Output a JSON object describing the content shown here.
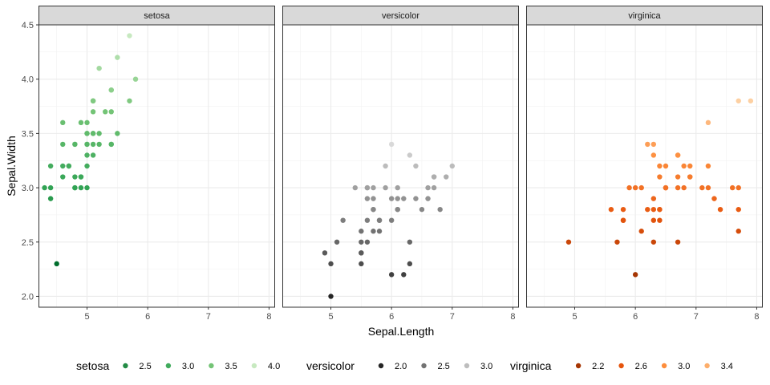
{
  "chart_data": {
    "type": "scatter",
    "xlabel": "Sepal.Length",
    "ylabel": "Sepal.Width",
    "xlim": [
      4.2,
      8.1
    ],
    "ylim": [
      1.9,
      4.5
    ],
    "x_ticks": [
      "5",
      "6",
      "7",
      "8"
    ],
    "y_ticks": [
      "2.0",
      "2.5",
      "3.0",
      "3.5",
      "4.0",
      "4.5"
    ],
    "grid": true,
    "legend_position": "bottom",
    "panels": [
      {
        "name": "setosa",
        "legend_title": "setosa",
        "color_range": [
          2.3,
          4.4
        ],
        "colors": [
          "#006d2c",
          "#31a354",
          "#74c476",
          "#c7e9c0"
        ],
        "legend": [
          {
            "label": "2.5",
            "value": 2.5,
            "color": "#238b45"
          },
          {
            "label": "3.0",
            "value": 3.0,
            "color": "#41ab5d"
          },
          {
            "label": "3.5",
            "value": 3.5,
            "color": "#74c476"
          },
          {
            "label": "4.0",
            "value": 4.0,
            "color": "#c7e9c0"
          }
        ],
        "points": [
          [
            5.1,
            3.5
          ],
          [
            4.9,
            3.0
          ],
          [
            4.7,
            3.2
          ],
          [
            4.6,
            3.1
          ],
          [
            5.0,
            3.6
          ],
          [
            5.4,
            3.9
          ],
          [
            4.6,
            3.4
          ],
          [
            5.0,
            3.4
          ],
          [
            4.4,
            2.9
          ],
          [
            4.9,
            3.1
          ],
          [
            5.4,
            3.7
          ],
          [
            4.8,
            3.4
          ],
          [
            4.8,
            3.0
          ],
          [
            4.3,
            3.0
          ],
          [
            5.8,
            4.0
          ],
          [
            5.7,
            4.4
          ],
          [
            5.4,
            3.9
          ],
          [
            5.1,
            3.5
          ],
          [
            5.7,
            3.8
          ],
          [
            5.1,
            3.8
          ],
          [
            5.4,
            3.4
          ],
          [
            5.1,
            3.7
          ],
          [
            4.6,
            3.6
          ],
          [
            5.1,
            3.3
          ],
          [
            4.8,
            3.4
          ],
          [
            5.0,
            3.0
          ],
          [
            5.0,
            3.4
          ],
          [
            5.2,
            3.5
          ],
          [
            5.2,
            3.4
          ],
          [
            4.7,
            3.2
          ],
          [
            4.8,
            3.1
          ],
          [
            5.4,
            3.4
          ],
          [
            5.2,
            4.1
          ],
          [
            5.5,
            4.2
          ],
          [
            4.9,
            3.1
          ],
          [
            5.0,
            3.2
          ],
          [
            5.5,
            3.5
          ],
          [
            4.9,
            3.6
          ],
          [
            4.4,
            3.0
          ],
          [
            5.1,
            3.4
          ],
          [
            5.0,
            3.5
          ],
          [
            4.5,
            2.3
          ],
          [
            4.4,
            3.2
          ],
          [
            5.0,
            3.5
          ],
          [
            5.1,
            3.8
          ],
          [
            4.8,
            3.0
          ],
          [
            5.1,
            3.8
          ],
          [
            4.6,
            3.2
          ],
          [
            5.3,
            3.7
          ],
          [
            5.0,
            3.3
          ]
        ]
      },
      {
        "name": "versicolor",
        "legend_title": "versicolor",
        "color_range": [
          2.0,
          3.4
        ],
        "colors": [
          "#252525",
          "#636363",
          "#969696",
          "#d9d9d9"
        ],
        "legend": [
          {
            "label": "2.0",
            "value": 2.0,
            "color": "#252525"
          },
          {
            "label": "2.5",
            "value": 2.5,
            "color": "#737373"
          },
          {
            "label": "3.0",
            "value": 3.0,
            "color": "#bdbdbd"
          }
        ],
        "points": [
          [
            7.0,
            3.2
          ],
          [
            6.4,
            3.2
          ],
          [
            6.9,
            3.1
          ],
          [
            5.5,
            2.3
          ],
          [
            6.5,
            2.8
          ],
          [
            5.7,
            2.8
          ],
          [
            6.3,
            3.3
          ],
          [
            4.9,
            2.4
          ],
          [
            6.6,
            2.9
          ],
          [
            5.2,
            2.7
          ],
          [
            5.0,
            2.0
          ],
          [
            5.9,
            3.0
          ],
          [
            6.0,
            2.2
          ],
          [
            6.1,
            2.9
          ],
          [
            5.6,
            2.9
          ],
          [
            6.7,
            3.1
          ],
          [
            5.6,
            3.0
          ],
          [
            5.8,
            2.7
          ],
          [
            6.2,
            2.2
          ],
          [
            5.6,
            2.5
          ],
          [
            5.9,
            3.2
          ],
          [
            6.1,
            2.8
          ],
          [
            6.3,
            2.5
          ],
          [
            6.1,
            2.8
          ],
          [
            6.4,
            2.9
          ],
          [
            6.6,
            3.0
          ],
          [
            6.8,
            2.8
          ],
          [
            6.7,
            3.0
          ],
          [
            6.0,
            2.9
          ],
          [
            5.7,
            2.6
          ],
          [
            5.5,
            2.4
          ],
          [
            5.5,
            2.4
          ],
          [
            5.8,
            2.7
          ],
          [
            6.0,
            2.7
          ],
          [
            5.4,
            3.0
          ],
          [
            6.0,
            3.4
          ],
          [
            6.7,
            3.1
          ],
          [
            6.3,
            2.3
          ],
          [
            5.6,
            3.0
          ],
          [
            5.5,
            2.5
          ],
          [
            5.5,
            2.6
          ],
          [
            6.1,
            3.0
          ],
          [
            5.8,
            2.6
          ],
          [
            5.0,
            2.3
          ],
          [
            5.6,
            2.7
          ],
          [
            5.7,
            3.0
          ],
          [
            5.7,
            2.9
          ],
          [
            6.2,
            2.9
          ],
          [
            5.1,
            2.5
          ],
          [
            5.7,
            2.8
          ]
        ]
      },
      {
        "name": "virginica",
        "legend_title": "virginica",
        "color_range": [
          2.2,
          3.8
        ],
        "colors": [
          "#a63603",
          "#e6550d",
          "#fd8d3c",
          "#fdd0a2"
        ],
        "legend": [
          {
            "label": "2.2",
            "value": 2.2,
            "color": "#a63603"
          },
          {
            "label": "2.6",
            "value": 2.6,
            "color": "#e6550d"
          },
          {
            "label": "3.0",
            "value": 3.0,
            "color": "#fd8d3c"
          },
          {
            "label": "3.4",
            "value": 3.4,
            "color": "#fdae6b"
          }
        ],
        "points": [
          [
            6.3,
            3.3
          ],
          [
            5.8,
            2.7
          ],
          [
            7.1,
            3.0
          ],
          [
            6.3,
            2.9
          ],
          [
            6.5,
            3.0
          ],
          [
            7.6,
            3.0
          ],
          [
            4.9,
            2.5
          ],
          [
            7.3,
            2.9
          ],
          [
            6.7,
            2.5
          ],
          [
            7.2,
            3.6
          ],
          [
            6.5,
            3.2
          ],
          [
            6.4,
            2.7
          ],
          [
            6.8,
            3.0
          ],
          [
            5.7,
            2.5
          ],
          [
            5.8,
            2.8
          ],
          [
            6.4,
            3.2
          ],
          [
            6.5,
            3.0
          ],
          [
            7.7,
            3.8
          ],
          [
            7.7,
            2.6
          ],
          [
            6.0,
            2.2
          ],
          [
            6.9,
            3.2
          ],
          [
            5.6,
            2.8
          ],
          [
            7.7,
            2.8
          ],
          [
            6.3,
            2.7
          ],
          [
            6.7,
            3.3
          ],
          [
            7.2,
            3.2
          ],
          [
            6.2,
            2.8
          ],
          [
            6.1,
            3.0
          ],
          [
            6.4,
            2.8
          ],
          [
            7.2,
            3.0
          ],
          [
            7.4,
            2.8
          ],
          [
            7.9,
            3.8
          ],
          [
            6.4,
            2.8
          ],
          [
            6.3,
            2.8
          ],
          [
            6.1,
            2.6
          ],
          [
            7.7,
            3.0
          ],
          [
            6.3,
            3.4
          ],
          [
            6.4,
            3.1
          ],
          [
            6.0,
            3.0
          ],
          [
            6.9,
            3.1
          ],
          [
            6.7,
            3.1
          ],
          [
            6.9,
            3.1
          ],
          [
            5.8,
            2.7
          ],
          [
            6.8,
            3.2
          ],
          [
            6.7,
            3.3
          ],
          [
            6.7,
            3.0
          ],
          [
            6.3,
            2.5
          ],
          [
            6.5,
            3.0
          ],
          [
            6.2,
            3.4
          ],
          [
            5.9,
            3.0
          ]
        ]
      }
    ]
  }
}
